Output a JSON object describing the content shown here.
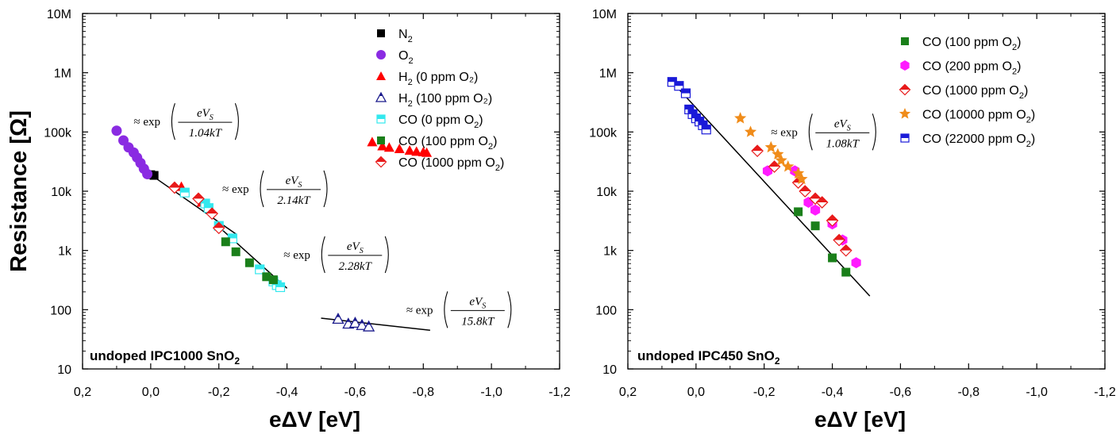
{
  "chart_data": [
    {
      "type": "scatter",
      "panel_label": "undoped IPC1000 SnO",
      "panel_label_sub": "2",
      "xlabel": "eΔV [eV]",
      "ylabel": "Resistance [Ω]",
      "x_scale": "linear",
      "x_reversed": true,
      "xlim": [
        0.2,
        -1.2
      ],
      "x_ticks": [
        "0,2",
        "0,0",
        "-0,2",
        "-0,4",
        "-0,6",
        "-0,8",
        "-1,0",
        "-1,2"
      ],
      "y_scale": "log",
      "ylim": [
        10,
        10000000
      ],
      "y_ticks": [
        "10",
        "100",
        "1k",
        "10k",
        "100k",
        "1M",
        "10M"
      ],
      "legend_position": "top-right",
      "series": [
        {
          "name": "N",
          "sub": "2",
          "tail": "",
          "marker": "square",
          "color": "#000000",
          "x": [
            0.0,
            -0.01
          ],
          "y": [
            19000,
            18500
          ]
        },
        {
          "name": "O",
          "sub": "2",
          "tail": "",
          "marker": "circle",
          "color": "#8a2be2",
          "x": [
            0.1,
            0.08,
            0.065,
            0.05,
            0.04,
            0.03,
            0.02,
            0.01
          ],
          "y": [
            105000,
            72000,
            55000,
            45000,
            37000,
            30000,
            24000,
            19500
          ]
        },
        {
          "name": "H",
          "sub": "2",
          "tail": " (0 ppm O₂)",
          "marker": "triangle",
          "color": "#ff0000",
          "x": [
            -0.09,
            -0.15,
            -0.17,
            -0.65,
            -0.68,
            -0.7,
            -0.73,
            -0.76,
            -0.78,
            -0.8,
            -0.81
          ],
          "y": [
            12000,
            6500,
            5500,
            68000,
            58000,
            55000,
            52000,
            49000,
            47000,
            46000,
            45000
          ]
        },
        {
          "name": "H",
          "sub": "2",
          "tail": " (100 ppm O₂)",
          "marker": "triangle-half",
          "color": "#1a1a8c",
          "x": [
            -0.55,
            -0.58,
            -0.6,
            -0.62,
            -0.64
          ],
          "y": [
            70,
            58,
            60,
            55,
            52
          ]
        },
        {
          "name": "CO (0 ppm O",
          "sub": "2",
          "tail": ")",
          "marker": "square-half",
          "color": "#33e8ee",
          "x": [
            -0.1,
            -0.16,
            -0.17,
            -0.2,
            -0.24,
            -0.32,
            -0.36,
            -0.37,
            -0.38
          ],
          "y": [
            9500,
            6200,
            5200,
            2600,
            1600,
            480,
            300,
            260,
            240
          ]
        },
        {
          "name": "CO (100 ppm O",
          "sub": "2",
          "tail": ")",
          "marker": "square",
          "color": "#1a7f1a",
          "x": [
            -0.22,
            -0.25,
            -0.29,
            -0.34,
            -0.36
          ],
          "y": [
            1400,
            950,
            620,
            360,
            320
          ]
        },
        {
          "name": "CO (1000 ppm O",
          "sub": "2",
          "tail": ")",
          "marker": "diamond-half",
          "color": "#e81a1a",
          "x": [
            -0.07,
            -0.14,
            -0.18,
            -0.2
          ],
          "y": [
            11500,
            7500,
            4200,
            2400
          ]
        }
      ],
      "fit_lines": [
        {
          "x": [
            0.07,
            0.01
          ],
          "y": [
            70000,
            20000
          ]
        },
        {
          "x": [
            0.0,
            -0.25
          ],
          "y": [
            19000,
            1900
          ]
        },
        {
          "x": [
            -0.2,
            -0.4
          ],
          "y": [
            2500,
            230
          ]
        },
        {
          "x": [
            -0.5,
            -0.82
          ],
          "y": [
            72,
            45
          ]
        }
      ],
      "annotations": [
        {
          "prefix": "≈ exp",
          "num": "eV",
          "num_sub": "S",
          "den": "1.04kT",
          "x": 0.05,
          "y": 150000
        },
        {
          "prefix": "≈ exp",
          "num": "eV",
          "num_sub": "S",
          "den": "2.14kT",
          "x": -0.21,
          "y": 11000
        },
        {
          "prefix": "≈ exp",
          "num": "eV",
          "num_sub": "S",
          "den": "2.28kT",
          "x": -0.39,
          "y": 850
        },
        {
          "prefix": "≈ exp",
          "num": "eV",
          "num_sub": "S",
          "den": "15.8kT",
          "x": -0.75,
          "y": 100
        }
      ]
    },
    {
      "type": "scatter",
      "panel_label": "undoped IPC450 SnO",
      "panel_label_sub": "2",
      "xlabel": "eΔV [eV]",
      "ylabel": "",
      "x_scale": "linear",
      "x_reversed": true,
      "xlim": [
        0.2,
        -1.2
      ],
      "x_ticks": [
        "0,2",
        "0,0",
        "-0,2",
        "-0,4",
        "-0,6",
        "-0,8",
        "-1,0",
        "-1,2"
      ],
      "y_scale": "log",
      "ylim": [
        10,
        10000000
      ],
      "y_ticks": [
        "10",
        "100",
        "1k",
        "10k",
        "100k",
        "1M",
        "10M"
      ],
      "legend_position": "top-right",
      "series": [
        {
          "name": "CO (100 ppm O",
          "sub": "2",
          "tail": ")",
          "marker": "square",
          "color": "#1a7f1a",
          "x": [
            -0.3,
            -0.35,
            -0.4,
            -0.44
          ],
          "y": [
            4500,
            2600,
            750,
            430
          ]
        },
        {
          "name": "CO (200 ppm O",
          "sub": "2",
          "tail": ")",
          "marker": "hexagon",
          "color": "#ff1aff",
          "x": [
            -0.21,
            -0.29,
            -0.33,
            -0.35,
            -0.4,
            -0.43,
            -0.47
          ],
          "y": [
            22000,
            22000,
            6500,
            4800,
            2800,
            1500,
            620
          ]
        },
        {
          "name": "CO (1000 ppm O",
          "sub": "2",
          "tail": ")",
          "marker": "diamond-half",
          "color": "#e81a1a",
          "x": [
            -0.18,
            -0.23,
            -0.3,
            -0.32,
            -0.35,
            -0.37,
            -0.4,
            -0.42,
            -0.44
          ],
          "y": [
            48000,
            26000,
            14000,
            10000,
            7500,
            6500,
            3200,
            1500,
            1000
          ]
        },
        {
          "name": "CO (10000 ppm O",
          "sub": "2",
          "tail": ")",
          "marker": "star",
          "color": "#f08c1a",
          "x": [
            -0.13,
            -0.16,
            -0.22,
            -0.24,
            -0.25,
            -0.27,
            -0.3,
            -0.31
          ],
          "y": [
            170000,
            100000,
            55000,
            42000,
            33000,
            26000,
            20000,
            16000
          ]
        },
        {
          "name": "CO (22000 ppm O",
          "sub": "2",
          "tail": ")",
          "marker": "square-half",
          "color": "#1a1ad8",
          "x": [
            0.07,
            0.05,
            0.03,
            0.02,
            0.01,
            0.0,
            -0.01,
            -0.02,
            -0.03
          ],
          "y": [
            700000,
            600000,
            450000,
            240000,
            200000,
            170000,
            150000,
            130000,
            110000
          ]
        }
      ],
      "fit_lines": [
        {
          "x": [
            0.07,
            -0.51
          ],
          "y": [
            700000,
            170
          ]
        }
      ],
      "annotations": [
        {
          "prefix": "≈ exp",
          "num": "eV",
          "num_sub": "S",
          "den": "1.08kT",
          "x": -0.22,
          "y": 100000
        }
      ]
    }
  ]
}
